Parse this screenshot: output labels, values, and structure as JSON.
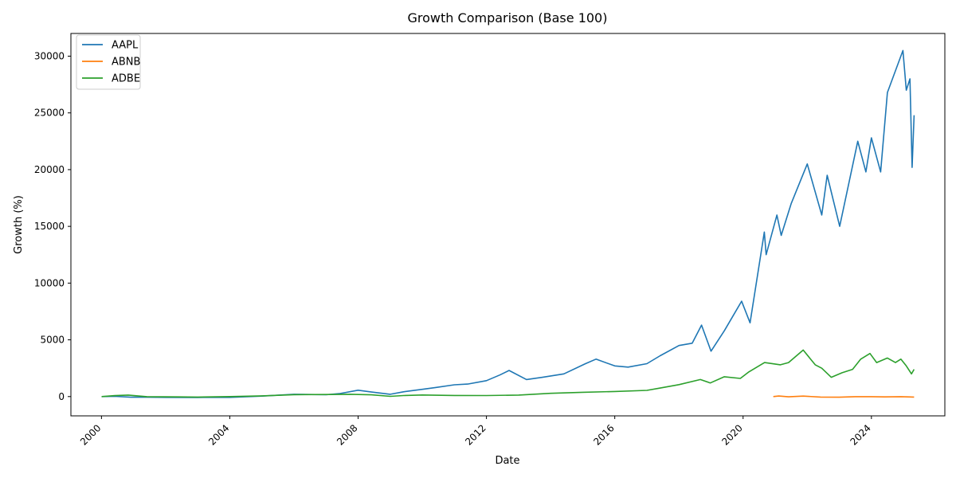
{
  "chart_data": {
    "type": "line",
    "title": "Growth Comparison (Base 100)",
    "xlabel": "Date",
    "ylabel": "Growth (%)",
    "x_ticks": [
      "2000",
      "2004",
      "2008",
      "2012",
      "2016",
      "2020",
      "2024"
    ],
    "y_ticks": [
      "0",
      "5000",
      "10000",
      "15000",
      "20000",
      "25000",
      "30000"
    ],
    "xlim": [
      "1999-01-18",
      "2026-04-16"
    ],
    "ylim": [
      -1700,
      32000
    ],
    "grid": false,
    "legend_position": "top-left",
    "series": [
      {
        "name": "AAPL",
        "color": "#1f77b4",
        "points": [
          [
            "2000-01-03",
            0
          ],
          [
            "2000-06-01",
            20
          ],
          [
            "2000-12-01",
            -60
          ],
          [
            "2001-06-01",
            -60
          ],
          [
            "2002-01-01",
            -70
          ],
          [
            "2003-01-01",
            -80
          ],
          [
            "2004-01-01",
            -70
          ],
          [
            "2005-01-01",
            40
          ],
          [
            "2006-01-01",
            200
          ],
          [
            "2007-01-01",
            160
          ],
          [
            "2007-06-01",
            260
          ],
          [
            "2008-01-01",
            560
          ],
          [
            "2008-06-01",
            400
          ],
          [
            "2009-01-01",
            200
          ],
          [
            "2009-06-01",
            420
          ],
          [
            "2010-01-01",
            640
          ],
          [
            "2010-06-01",
            800
          ],
          [
            "2011-01-01",
            1040
          ],
          [
            "2011-06-01",
            1100
          ],
          [
            "2012-01-01",
            1400
          ],
          [
            "2012-06-01",
            1900
          ],
          [
            "2012-09-15",
            2300
          ],
          [
            "2013-04-01",
            1500
          ],
          [
            "2013-10-01",
            1700
          ],
          [
            "2014-06-01",
            2000
          ],
          [
            "2015-02-01",
            2900
          ],
          [
            "2015-06-01",
            3300
          ],
          [
            "2016-01-01",
            2700
          ],
          [
            "2016-06-01",
            2600
          ],
          [
            "2017-01-01",
            2900
          ],
          [
            "2017-06-01",
            3600
          ],
          [
            "2018-01-01",
            4500
          ],
          [
            "2018-06-01",
            4700
          ],
          [
            "2018-09-15",
            6300
          ],
          [
            "2019-01-01",
            4000
          ],
          [
            "2019-06-01",
            5800
          ],
          [
            "2019-12-15",
            8400
          ],
          [
            "2020-03-20",
            6500
          ],
          [
            "2020-08-30",
            14500
          ],
          [
            "2020-09-20",
            12500
          ],
          [
            "2021-01-20",
            16000
          ],
          [
            "2021-03-10",
            14200
          ],
          [
            "2021-07-01",
            17000
          ],
          [
            "2022-01-01",
            20500
          ],
          [
            "2022-06-15",
            16000
          ],
          [
            "2022-08-15",
            19500
          ],
          [
            "2023-01-05",
            15000
          ],
          [
            "2023-07-30",
            22500
          ],
          [
            "2023-10-30",
            19800
          ],
          [
            "2024-01-01",
            22800
          ],
          [
            "2024-04-15",
            19800
          ],
          [
            "2024-07-01",
            26800
          ],
          [
            "2024-12-25",
            30500
          ],
          [
            "2025-02-01",
            27000
          ],
          [
            "2025-03-15",
            28000
          ],
          [
            "2025-04-08",
            20200
          ],
          [
            "2025-05-01",
            24800
          ]
        ]
      },
      {
        "name": "ABNB",
        "color": "#ff7f0e",
        "points": [
          [
            "2020-12-10",
            0
          ],
          [
            "2021-02-10",
            50
          ],
          [
            "2021-06-01",
            -20
          ],
          [
            "2021-11-15",
            40
          ],
          [
            "2022-06-01",
            -40
          ],
          [
            "2022-12-30",
            -60
          ],
          [
            "2023-07-01",
            -10
          ],
          [
            "2024-01-01",
            -10
          ],
          [
            "2024-06-01",
            -30
          ],
          [
            "2024-12-01",
            -10
          ],
          [
            "2025-05-01",
            -40
          ]
        ]
      },
      {
        "name": "ADBE",
        "color": "#2ca02c",
        "points": [
          [
            "2000-01-03",
            0
          ],
          [
            "2000-06-01",
            80
          ],
          [
            "2000-11-01",
            130
          ],
          [
            "2001-06-01",
            -10
          ],
          [
            "2002-06-01",
            -30
          ],
          [
            "2003-01-01",
            -40
          ],
          [
            "2004-01-01",
            0
          ],
          [
            "2005-01-01",
            60
          ],
          [
            "2006-01-01",
            170
          ],
          [
            "2007-01-01",
            180
          ],
          [
            "2007-10-01",
            200
          ],
          [
            "2008-06-01",
            150
          ],
          [
            "2009-01-01",
            20
          ],
          [
            "2009-06-01",
            90
          ],
          [
            "2010-01-01",
            140
          ],
          [
            "2011-01-01",
            100
          ],
          [
            "2012-01-01",
            90
          ],
          [
            "2013-01-01",
            130
          ],
          [
            "2014-01-01",
            290
          ],
          [
            "2015-01-01",
            380
          ],
          [
            "2016-01-01",
            450
          ],
          [
            "2017-01-01",
            550
          ],
          [
            "2017-06-01",
            750
          ],
          [
            "2018-01-01",
            1050
          ],
          [
            "2018-09-01",
            1500
          ],
          [
            "2018-12-24",
            1200
          ],
          [
            "2019-06-01",
            1750
          ],
          [
            "2019-12-01",
            1600
          ],
          [
            "2020-03-01",
            2150
          ],
          [
            "2020-09-01",
            3000
          ],
          [
            "2021-03-01",
            2800
          ],
          [
            "2021-06-01",
            3000
          ],
          [
            "2021-11-15",
            4100
          ],
          [
            "2022-04-01",
            2800
          ],
          [
            "2022-06-15",
            2500
          ],
          [
            "2022-10-01",
            1700
          ],
          [
            "2023-02-01",
            2100
          ],
          [
            "2023-06-01",
            2400
          ],
          [
            "2023-09-01",
            3300
          ],
          [
            "2023-12-15",
            3800
          ],
          [
            "2024-03-01",
            3000
          ],
          [
            "2024-07-01",
            3400
          ],
          [
            "2024-10-01",
            3000
          ],
          [
            "2024-12-01",
            3300
          ],
          [
            "2025-02-01",
            2700
          ],
          [
            "2025-04-01",
            2000
          ],
          [
            "2025-05-01",
            2400
          ]
        ]
      }
    ]
  }
}
